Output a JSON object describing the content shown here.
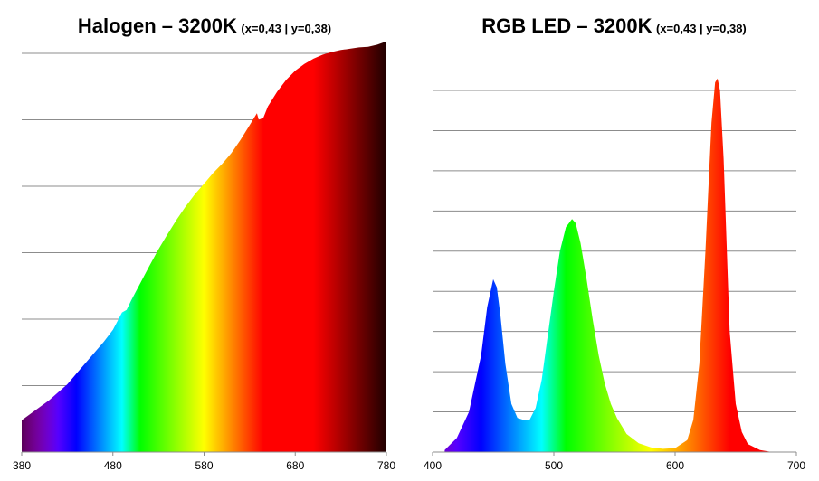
{
  "chart_data": [
    {
      "type": "area",
      "title": "Halogen – 3200K",
      "subtitle": "(x=0,43 | y=0,38)",
      "xlabel": "",
      "ylabel": "",
      "xlim": [
        380,
        780
      ],
      "ylim": [
        0,
        6
      ],
      "grid": true,
      "fill": "wavelength-spectrum-colors",
      "xticks": [
        "380",
        "480",
        "580",
        "680",
        "780"
      ],
      "series": [
        {
          "x": [
            380,
            390,
            400,
            410,
            420,
            430,
            440,
            450,
            460,
            470,
            480,
            490,
            495,
            500,
            510,
            520,
            530,
            540,
            550,
            560,
            570,
            580,
            590,
            600,
            610,
            620,
            630,
            638,
            640,
            645,
            650,
            660,
            670,
            680,
            690,
            700,
            710,
            720,
            730,
            740,
            750,
            760,
            770,
            780
          ],
          "y": [
            0.48,
            0.58,
            0.68,
            0.78,
            0.9,
            1.02,
            1.18,
            1.34,
            1.5,
            1.66,
            1.84,
            2.1,
            2.14,
            2.28,
            2.54,
            2.8,
            3.05,
            3.28,
            3.5,
            3.7,
            3.88,
            4.04,
            4.2,
            4.34,
            4.5,
            4.7,
            4.92,
            5.1,
            5.0,
            5.03,
            5.2,
            5.42,
            5.6,
            5.74,
            5.84,
            5.92,
            5.98,
            6.02,
            6.05,
            6.07,
            6.09,
            6.1,
            6.13,
            6.18
          ]
        }
      ]
    },
    {
      "type": "area",
      "title": "RGB LED – 3200K",
      "subtitle": "(x=0,43 | y=0,38)",
      "xlabel": "",
      "ylabel": "",
      "xlim": [
        400,
        700
      ],
      "ylim": [
        0,
        9
      ],
      "grid": true,
      "fill": "wavelength-spectrum-colors",
      "xticks": [
        "400",
        "500",
        "600",
        "700"
      ],
      "series": [
        {
          "x": [
            410,
            420,
            430,
            440,
            445,
            450,
            453,
            456,
            460,
            465,
            470,
            475,
            480,
            485,
            490,
            495,
            500,
            505,
            510,
            515,
            518,
            522,
            527,
            532,
            537,
            542,
            547,
            552,
            560,
            570,
            580,
            590,
            600,
            610,
            615,
            620,
            625,
            630,
            633,
            635,
            637,
            640,
            645,
            650,
            655,
            660,
            670,
            680
          ],
          "y": [
            0.05,
            0.35,
            1.0,
            2.4,
            3.6,
            4.3,
            4.1,
            3.4,
            2.2,
            1.2,
            0.85,
            0.8,
            0.8,
            1.1,
            1.8,
            2.9,
            4.0,
            5.0,
            5.6,
            5.8,
            5.7,
            5.2,
            4.3,
            3.3,
            2.4,
            1.7,
            1.2,
            0.85,
            0.45,
            0.22,
            0.12,
            0.08,
            0.1,
            0.3,
            0.8,
            2.2,
            5.0,
            8.2,
            9.2,
            9.3,
            9.0,
            7.3,
            3.0,
            1.2,
            0.5,
            0.2,
            0.05,
            0.0
          ]
        }
      ]
    }
  ]
}
